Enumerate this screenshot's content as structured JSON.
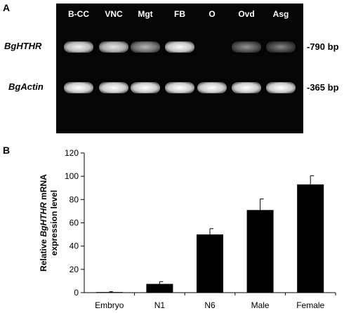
{
  "panel_a": {
    "label": "A",
    "lanes": [
      "B-CC",
      "VNC",
      "Mgt",
      "FB",
      "O",
      "Ovd",
      "Asg"
    ],
    "rows": [
      {
        "name": "BgHTHR",
        "size": "-790 bp",
        "intensity": [
          0.92,
          0.85,
          0.55,
          0.97,
          0.0,
          0.35,
          0.25
        ]
      },
      {
        "name": "BgActin",
        "size": "-365 bp",
        "intensity": [
          1.0,
          1.0,
          1.0,
          1.0,
          1.0,
          1.0,
          1.0
        ]
      }
    ]
  },
  "chart_data": {
    "panel_label": "B",
    "type": "bar",
    "categories": [
      "Embryo",
      "N1",
      "N6",
      "Male",
      "Female"
    ],
    "values": [
      0.5,
      7.5,
      50,
      71,
      93
    ],
    "error": [
      0.3,
      2,
      5,
      9.5,
      7.5
    ],
    "ylabel_pre": "Relative",
    "ylabel_gene": "BgHTHR",
    "ylabel_post": "mRNA",
    "ylabel_line2": "expression level",
    "ylim": [
      0,
      120
    ],
    "yticks": [
      0,
      20,
      40,
      60,
      80,
      100,
      120
    ],
    "bar_color": "#000000",
    "grid": false
  }
}
